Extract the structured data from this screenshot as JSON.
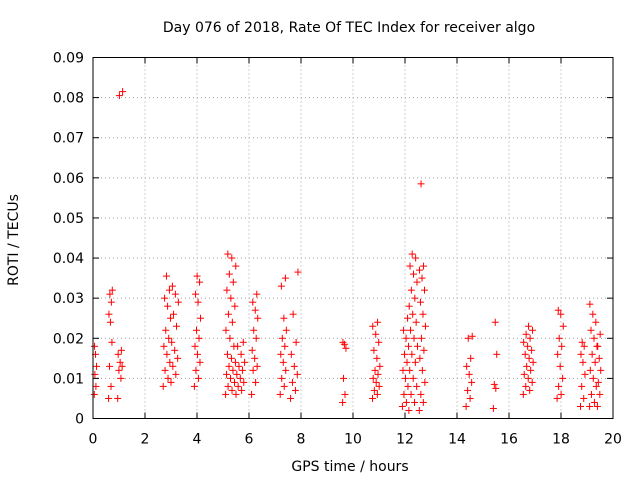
{
  "chart_data": {
    "type": "scatter",
    "title": "Day 076 of 2018, Rate Of TEC Index for receiver algo",
    "xlabel": "GPS time / hours",
    "ylabel": "ROTI / TECUs",
    "xlim": [
      0,
      20
    ],
    "ylim": [
      0,
      0.09
    ],
    "xticks": [
      "0",
      "2",
      "4",
      "6",
      "8",
      "10",
      "12",
      "14",
      "16",
      "18",
      "20"
    ],
    "yticks": [
      "0",
      "0.01",
      "0.02",
      "0.03",
      "0.04",
      "0.05",
      "0.06",
      "0.07",
      "0.08",
      "0.09"
    ],
    "grid": true,
    "marker": "+",
    "color": "#ff0000",
    "clusters": [
      {
        "x": 0.05,
        "x2": 0.15,
        "y": [
          0.006,
          0.008,
          0.011,
          0.013,
          0.016,
          0.018
        ]
      },
      {
        "x": 0.6,
        "x2": 0.75,
        "y": [
          0.005,
          0.008,
          0.013,
          0.019,
          0.024,
          0.026,
          0.029,
          0.031,
          0.032
        ]
      },
      {
        "x": 0.95,
        "x2": 1.15,
        "y": [
          0.005,
          0.01,
          0.012,
          0.013,
          0.014,
          0.016,
          0.017,
          0.0805,
          0.0815
        ]
      },
      {
        "x": 2.7,
        "x2": 3.0,
        "y": [
          0.008,
          0.01,
          0.012,
          0.014,
          0.016,
          0.018,
          0.02,
          0.022,
          0.025,
          0.028,
          0.03,
          0.032,
          0.0355
        ]
      },
      {
        "x": 3.0,
        "x2": 3.3,
        "y": [
          0.009,
          0.011,
          0.013,
          0.015,
          0.017,
          0.019,
          0.023,
          0.026,
          0.029,
          0.031,
          0.033
        ]
      },
      {
        "x": 3.9,
        "x2": 4.15,
        "y": [
          0.008,
          0.01,
          0.012,
          0.014,
          0.016,
          0.018,
          0.02,
          0.022,
          0.025,
          0.029,
          0.031,
          0.034,
          0.0355
        ]
      },
      {
        "x": 5.1,
        "x2": 5.5,
        "y": [
          0.006,
          0.007,
          0.008,
          0.009,
          0.01,
          0.011,
          0.012,
          0.013,
          0.014,
          0.015,
          0.016,
          0.018,
          0.02,
          0.022,
          0.024,
          0.026,
          0.028,
          0.03,
          0.032,
          0.034,
          0.036,
          0.038,
          0.04,
          0.041
        ]
      },
      {
        "x": 5.5,
        "x2": 5.85,
        "y": [
          0.006,
          0.007,
          0.008,
          0.009,
          0.01,
          0.011,
          0.012,
          0.013,
          0.014,
          0.016,
          0.018,
          0.019
        ]
      },
      {
        "x": 6.1,
        "x2": 6.35,
        "y": [
          0.006,
          0.009,
          0.012,
          0.013,
          0.015,
          0.017,
          0.02,
          0.022,
          0.025,
          0.027,
          0.029,
          0.031
        ]
      },
      {
        "x": 7.2,
        "x2": 7.45,
        "y": [
          0.006,
          0.008,
          0.01,
          0.012,
          0.014,
          0.016,
          0.018,
          0.02,
          0.022,
          0.025,
          0.033,
          0.035
        ]
      },
      {
        "x": 7.6,
        "x2": 7.9,
        "y": [
          0.005,
          0.007,
          0.009,
          0.011,
          0.013,
          0.016,
          0.019,
          0.026,
          0.0365
        ]
      },
      {
        "x": 9.6,
        "x2": 9.75,
        "y": [
          0.004,
          0.006,
          0.01,
          0.0175,
          0.0185,
          0.019
        ]
      },
      {
        "x": 10.75,
        "x2": 11.05,
        "y": [
          0.005,
          0.006,
          0.007,
          0.008,
          0.009,
          0.01,
          0.011,
          0.012,
          0.013,
          0.015,
          0.017,
          0.019,
          0.021,
          0.023,
          0.024
        ]
      },
      {
        "x": 11.9,
        "x2": 12.15,
        "y": [
          0.003,
          0.004,
          0.006,
          0.008,
          0.01,
          0.012,
          0.014,
          0.016,
          0.018,
          0.02,
          0.022,
          0.025
        ]
      },
      {
        "x": 12.15,
        "x2": 12.5,
        "y": [
          0.002,
          0.004,
          0.006,
          0.008,
          0.01,
          0.012,
          0.014,
          0.016,
          0.018,
          0.02,
          0.022,
          0.024,
          0.026,
          0.028,
          0.03,
          0.032,
          0.034,
          0.036,
          0.038,
          0.04,
          0.041
        ]
      },
      {
        "x": 12.55,
        "x2": 12.8,
        "y": [
          0.002,
          0.004,
          0.006,
          0.009,
          0.012,
          0.015,
          0.017,
          0.02,
          0.023,
          0.026,
          0.029,
          0.032,
          0.035,
          0.037,
          0.038,
          0.0585
        ]
      },
      {
        "x": 14.35,
        "x2": 14.6,
        "y": [
          0.003,
          0.005,
          0.007,
          0.009,
          0.011,
          0.013,
          0.015,
          0.02,
          0.0205
        ]
      },
      {
        "x": 15.4,
        "x2": 15.55,
        "y": [
          0.0025,
          0.0075,
          0.0085,
          0.016,
          0.024
        ]
      },
      {
        "x": 16.55,
        "x2": 16.95,
        "y": [
          0.006,
          0.007,
          0.008,
          0.009,
          0.01,
          0.011,
          0.012,
          0.013,
          0.014,
          0.015,
          0.016,
          0.017,
          0.018,
          0.019,
          0.02,
          0.021,
          0.022,
          0.023
        ]
      },
      {
        "x": 17.85,
        "x2": 18.1,
        "y": [
          0.005,
          0.006,
          0.008,
          0.01,
          0.013,
          0.016,
          0.018,
          0.02,
          0.023,
          0.026,
          0.027
        ]
      },
      {
        "x": 18.75,
        "x2": 18.95,
        "y": [
          0.003,
          0.005,
          0.008,
          0.011,
          0.014,
          0.016,
          0.018,
          0.019
        ]
      },
      {
        "x": 19.1,
        "x2": 19.4,
        "y": [
          0.003,
          0.004,
          0.006,
          0.008,
          0.01,
          0.012,
          0.014,
          0.016,
          0.018,
          0.02,
          0.022,
          0.024,
          0.026,
          0.0285
        ]
      },
      {
        "x": 19.4,
        "x2": 19.55,
        "y": [
          0.003,
          0.006,
          0.009,
          0.012,
          0.015,
          0.018,
          0.021
        ]
      }
    ]
  }
}
